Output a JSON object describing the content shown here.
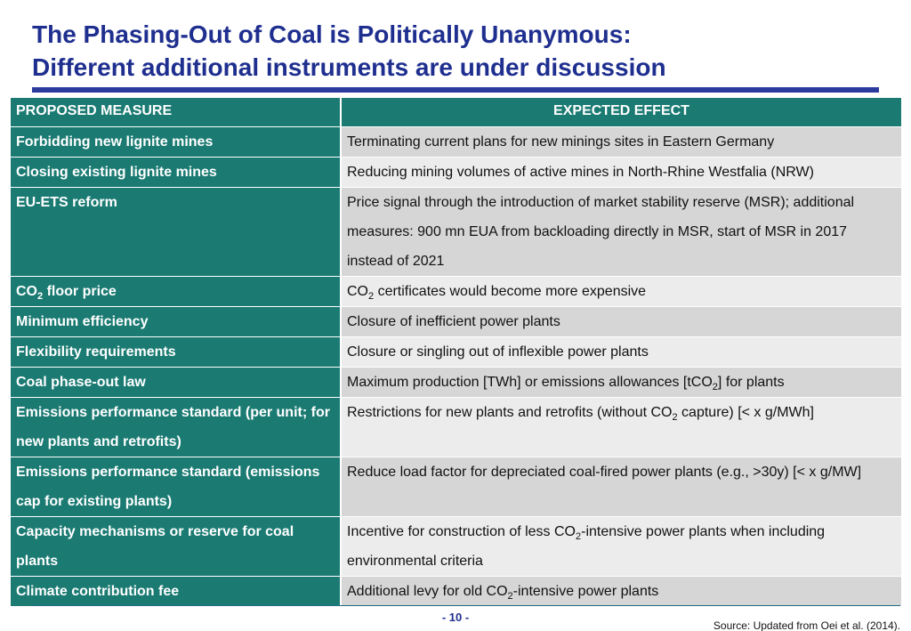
{
  "slide": {
    "title_line1": "The Phasing-Out of Coal is Politically Unanymous:",
    "title_line2": "Different additional instruments are under discussion",
    "page_number": "- 10 -",
    "source": "Source: Updated from Oei et al. (2014).",
    "colors": {
      "title": "#1f2f8f",
      "header_teal": "#1b7b73",
      "row_gray_dark": "#d6d6d6",
      "row_gray_light": "#ececec"
    }
  },
  "table": {
    "headers": [
      "PROPOSED MEASURE",
      "EXPECTED EFFECT"
    ],
    "rows": [
      {
        "measure": "Forbidding new lignite mines",
        "effect": "Terminating current plans for new minings sites in Eastern Germany"
      },
      {
        "measure": "Closing existing lignite mines",
        "effect": "Reducing mining volumes of active mines in North-Rhine Westfalia (NRW)"
      },
      {
        "measure": "EU-ETS reform",
        "effect": "Price signal through the introduction of market stability reserve (MSR); additional measures: 900 mn EUA from backloading directly in MSR, start of MSR in 2017 instead of 2021"
      },
      {
        "measure_pre": "CO",
        "measure_sub": "2",
        "measure_post": " floor price",
        "effect_pre": "CO",
        "effect_sub": "2",
        "effect_post": " certificates would become more expensive"
      },
      {
        "measure": "Minimum efficiency",
        "effect": "Closure of inefficient power plants"
      },
      {
        "measure": "Flexibility requirements",
        "effect": "Closure or singling out of inflexible power plants"
      },
      {
        "measure": "Coal phase-out law",
        "effect_pre": "Maximum production [TWh] or emissions allowances [tCO",
        "effect_sub": "2",
        "effect_post": "] for plants"
      },
      {
        "measure": "Emissions performance standard (per unit; for new plants and retrofits)",
        "effect_pre": "Restrictions for new plants and retrofits (without CO",
        "effect_sub": "2",
        "effect_post": " capture) [< x g/MWh]"
      },
      {
        "measure": "Emissions performance standard (emissions cap for existing plants)",
        "effect": "Reduce load factor for depreciated coal-fired power plants (e.g., >30y) [< x g/MW]"
      },
      {
        "measure": "Capacity mechanisms or reserve for coal plants",
        "effect_pre": "Incentive for construction of less CO",
        "effect_sub": "2",
        "effect_post": "-intensive power plants when including environmental criteria"
      },
      {
        "measure": "Climate contribution fee",
        "effect_pre": "Additional levy for old CO",
        "effect_sub": "2",
        "effect_post": "-intensive power plants"
      }
    ]
  }
}
